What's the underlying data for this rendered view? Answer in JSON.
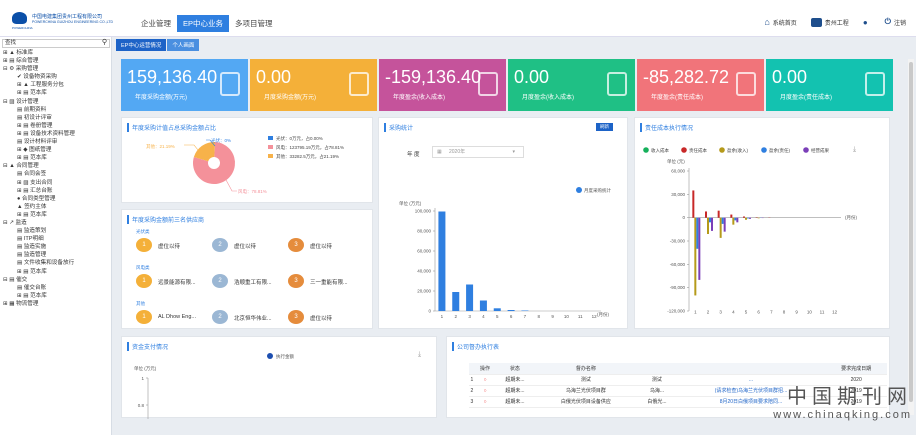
{
  "logo": {
    "line1": "中国电建集团贵州工程有限公司",
    "line2": "POWERCHINA GUIZHOU ENGINEERING CO.,LTD",
    "line3": "POWERCHINA"
  },
  "nav": [
    "企业管理",
    "EP中心业务",
    "多项目管理"
  ],
  "top_right": [
    "系统首页",
    "贵州工程",
    "",
    "注销"
  ],
  "search": {
    "placeholder": "查找"
  },
  "tree": [
    {
      "lv": 1,
      "t": "⊞ ▲ 标准库"
    },
    {
      "lv": 1,
      "t": "⊞ ▤ 综合管理"
    },
    {
      "lv": 1,
      "t": "⊟ ⚙ 采购管理"
    },
    {
      "lv": 2,
      "t": "✔ 设备物资采购"
    },
    {
      "lv": 2,
      "t": "⊞ ▲ 工程服务分包"
    },
    {
      "lv": 2,
      "t": "⊞ ▤ 范本库"
    },
    {
      "lv": 1,
      "t": "⊟ ▨ 设计管理"
    },
    {
      "lv": 2,
      "t": "▤ 前期资料"
    },
    {
      "lv": 2,
      "t": "▤ 初设计评审"
    },
    {
      "lv": 2,
      "t": "⊞ ▤ 卷册管理"
    },
    {
      "lv": 2,
      "t": "⊞ ▤ 设备技术资料管理"
    },
    {
      "lv": 2,
      "t": "▤ 设计材料评审"
    },
    {
      "lv": 2,
      "t": "⊞ ◆ 图纸管理"
    },
    {
      "lv": 2,
      "t": "⊞ ▤ 范本库"
    },
    {
      "lv": 1,
      "t": "⊟ ▲ 合同管理"
    },
    {
      "lv": 2,
      "t": "▤ 合同会签"
    },
    {
      "lv": 2,
      "t": "⊞ ▨ 支出合同"
    },
    {
      "lv": 2,
      "t": "⊞ ▤ 汇总台账"
    },
    {
      "lv": 2,
      "t": "● 合同类型管理"
    },
    {
      "lv": 2,
      "t": "▲ 签约主体"
    },
    {
      "lv": 2,
      "t": "⊞ ▤ 范本库"
    },
    {
      "lv": 1,
      "t": "⊟ ↗ 监造"
    },
    {
      "lv": 2,
      "t": "▤ 监造策划"
    },
    {
      "lv": 2,
      "t": "▤ ITP明细"
    },
    {
      "lv": 2,
      "t": "▤ 监造实施"
    },
    {
      "lv": 2,
      "t": "▤ 监造管理"
    },
    {
      "lv": 2,
      "t": "▤ 文件收集和设备放行"
    },
    {
      "lv": 2,
      "t": "⊞ ▤ 范本库"
    },
    {
      "lv": 1,
      "t": "⊟ ▤ 催交"
    },
    {
      "lv": 2,
      "t": "▤ 催交台账"
    },
    {
      "lv": 2,
      "t": "⊞ ▤ 范本库"
    },
    {
      "lv": 1,
      "t": "⊞ ▦ 物流管理"
    }
  ],
  "tabs": [
    "EP中心运营情况",
    "个人画面"
  ],
  "cards": [
    {
      "value": "159,136.40",
      "label": "年度采购金额(万元)",
      "color": "#53a8f3",
      "icon": "document-icon"
    },
    {
      "value": "0.00",
      "label": "月度采购金额(万元)",
      "color": "#f4b039",
      "icon": "calendar-icon"
    },
    {
      "value": "-159,136.40",
      "label": "年度盈余(收入成本)",
      "color": "#c5539b",
      "icon": "coins-icon"
    },
    {
      "value": "0.00",
      "label": "月度盈余(收入成本)",
      "color": "#1fc085",
      "icon": "list-icon"
    },
    {
      "value": "-85,282.72",
      "label": "年度盈余(责任成本)",
      "color": "#f1747a",
      "icon": "coins-icon"
    },
    {
      "value": "0.00",
      "label": "月度盈余(责任成本)",
      "color": "#13c2b0",
      "icon": "list-icon"
    }
  ],
  "pie_panel": {
    "title": "年度采购计值占总采购金额占比",
    "callouts": [
      "其他：21.19%",
      "光伏：0%",
      "风电：78.81%"
    ],
    "legend": [
      "光伏：0万元，占0.00%",
      "风电：123795.19万元，占78.81%",
      "其他：33282.5万元，占21.19%"
    ]
  },
  "supplier_panel": {
    "title": "年度采购金额前三名供应商",
    "groups": [
      {
        "name": "光伏类",
        "items": [
          {
            "rank": "1",
            "name": "虚位以待"
          },
          {
            "rank": "2",
            "name": "虚位以待"
          },
          {
            "rank": "3",
            "name": "虚位以待"
          }
        ]
      },
      {
        "name": "风电类",
        "items": [
          {
            "rank": "1",
            "name": "远景能源有限..."
          },
          {
            "rank": "2",
            "name": "浩顺重工有限..."
          },
          {
            "rank": "3",
            "name": "三一重能有限..."
          }
        ]
      },
      {
        "name": "其他",
        "items": [
          {
            "rank": "1",
            "name": "AL Dhow Eng..."
          },
          {
            "rank": "2",
            "name": "北京恒华伟业..."
          },
          {
            "rank": "3",
            "name": "虚位以待"
          }
        ]
      }
    ]
  },
  "purchase_stats": {
    "title": "采购统计",
    "button": "刷新",
    "year_label": "年 度",
    "year_value": "2020年",
    "legend": "月度采购统计",
    "unit": "单位 (万元)",
    "xunit": "(月份)"
  },
  "cost_panel": {
    "title": "责任成本执行情况",
    "legend": [
      "收入成本",
      "责任成本",
      "盈余(收入)",
      "盈余(责任)",
      "经营成果"
    ],
    "unit": "单位 (元)",
    "xunit": "(月份)"
  },
  "fund_panel": {
    "title": "资金支付情况",
    "legend": "执行金额",
    "unit": "单位 (万元)"
  },
  "contract_panel": {
    "title": "公司督办执行表",
    "headers": [
      "",
      "操作",
      "状态",
      "督办名称",
      "",
      "",
      "要求完成日期"
    ],
    "rows": [
      [
        "1",
        "○",
        "超期未...",
        "测试",
        "测试",
        "...",
        "2020"
      ],
      [
        "2",
        "○",
        "超期未...",
        "乌海兰光伏项目群",
        "乌海...",
        "(请求检查)乌海兰光伏项目群招...",
        "2019"
      ],
      [
        "3",
        "○",
        "超期未...",
        "白俄光伏项目设备供应",
        "白俄光...",
        "8月20日白俄项目要求陪同...",
        "2019"
      ]
    ]
  },
  "watermark": {
    "line1": "中国期刊网",
    "line2": "www.chinaqking.com"
  },
  "chart_data": [
    {
      "type": "pie",
      "title": "年度采购计值占总采购金额占比",
      "categories": [
        "光伏",
        "风电",
        "其他"
      ],
      "values": [
        0,
        123795.19,
        33282.5
      ],
      "percent": [
        0,
        78.81,
        21.19
      ],
      "colors": [
        "#2f7fe0",
        "#f4919a",
        "#f7b24a"
      ]
    },
    {
      "type": "bar",
      "title": "采购统计",
      "legend": "月度采购统计",
      "ylabel": "单位 (万元)",
      "xlabel": "(月份)",
      "categories": [
        "1",
        "2",
        "3",
        "4",
        "5",
        "6",
        "7",
        "8",
        "9",
        "10",
        "11",
        "12"
      ],
      "values": [
        99500,
        19000,
        26500,
        10500,
        2700,
        1000,
        500,
        0,
        0,
        0,
        0,
        0
      ],
      "ylim": [
        0,
        100000
      ],
      "yticks": [
        "100,000",
        "80,000",
        "60,000",
        "40,000",
        "20,000",
        "0"
      ],
      "color": "#2f7fe0"
    },
    {
      "type": "bar",
      "title": "责任成本执行情况",
      "ylabel": "单位 (元)",
      "xlabel": "(月份)",
      "categories": [
        "1",
        "2",
        "3",
        "4",
        "5",
        "6",
        "7",
        "8",
        "9",
        "10",
        "11",
        "12"
      ],
      "ylim": [
        -120000,
        60000
      ],
      "yticks": [
        "60,000",
        "30,000",
        "0",
        "-30,000",
        "-60,000",
        "-90,000",
        "-120,000"
      ],
      "series": [
        {
          "name": "收入成本",
          "color": "#16b05b",
          "values": [
            0,
            0,
            0,
            0,
            0,
            0,
            0,
            0,
            0,
            0,
            0,
            0
          ]
        },
        {
          "name": "责任成本",
          "color": "#c82828",
          "values": [
            35000,
            8000,
            9000,
            4000,
            1500,
            500,
            300,
            0,
            0,
            0,
            0,
            0
          ]
        },
        {
          "name": "盈余(收入)",
          "color": "#b59a1a",
          "values": [
            -100000,
            -21000,
            -26000,
            -9000,
            -2700,
            -800,
            0,
            0,
            0,
            0,
            0,
            0
          ]
        },
        {
          "name": "盈余(责任)",
          "color": "#2f7fe0",
          "values": [
            -40000,
            -6000,
            -8000,
            -3500,
            -1000,
            -300,
            0,
            0,
            0,
            0,
            0,
            0
          ]
        },
        {
          "name": "经营成果",
          "color": "#7b3fb8",
          "values": [
            -80000,
            -17000,
            -18000,
            -6000,
            -1500,
            -500,
            0,
            0,
            0,
            0,
            0,
            0
          ]
        }
      ]
    },
    {
      "type": "line",
      "title": "资金支付情况",
      "series": [
        {
          "name": "执行金额",
          "values": []
        }
      ],
      "ylabel": "单位 (万元)",
      "yticks": [
        "1",
        "0.8"
      ]
    }
  ]
}
